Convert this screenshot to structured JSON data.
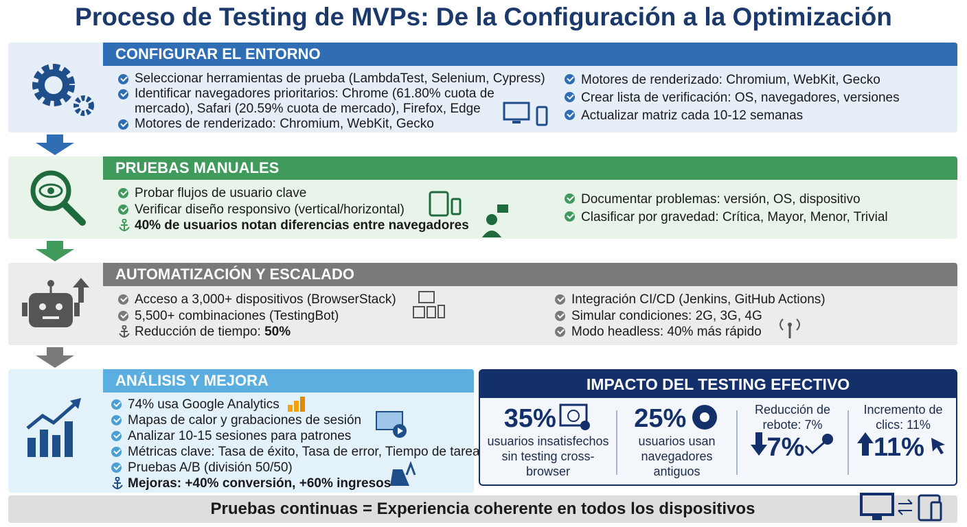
{
  "header": {
    "title": "Proceso de Testing de MVPs: De la Configuración a la Optimización"
  },
  "sections": [
    {
      "title": "CONFIGURAR EL ENTORNO",
      "left": [
        {
          "text": "Seleccionar herramientas de prueba (LambdaTest, Selenium, Cypress)"
        },
        {
          "text": "Identificar navegadores prioritarios: Chrome (61.80% cuota de mercado), Safari (20.59% cuota de mercado), Firefox, Edge"
        },
        {
          "text": "Motores de renderizado: Chromium, WebKit, Gecko"
        }
      ],
      "right": [
        {
          "text": "Motores de renderizado: Chromium, WebKit, Gecko"
        },
        {
          "text": "Crear lista de verificación: OS, navegadores, versiones"
        },
        {
          "text": "Actualizar matriz cada 10-12 semanas"
        }
      ]
    },
    {
      "title": "PRUEBAS MANUALES",
      "left": [
        {
          "text": "Probar flujos de usuario clave"
        },
        {
          "text": "Verificar diseño responsivo (vertical/horizontal)"
        },
        {
          "strong": "40% de usuarios notan diferencias entre navegadores"
        }
      ],
      "right": [
        {
          "text": "Documentar problemas: versión, OS, dispositivo"
        },
        {
          "text": "Clasificar por gravedad: Crítica, Mayor, Menor, Trivial"
        }
      ]
    },
    {
      "title": "AUTOMATIZACIÓN Y ESCALADO",
      "left": [
        {
          "text": "Acceso a 3,000+ dispositivos (BrowserStack)"
        },
        {
          "text": "5,500+ combinaciones (TestingBot)"
        },
        {
          "text": "Reducción de tiempo:",
          "strong": "50%"
        }
      ],
      "right": [
        {
          "text": "Integración CI/CD (Jenkins, GitHub Actions)"
        },
        {
          "text": "Simular condiciones: 2G, 3G, 4G"
        },
        {
          "text": "Modo headless: 40% más rápido"
        }
      ]
    },
    {
      "title": "ANÁLISIS Y MEJORA",
      "left": [
        {
          "text": "74% usa Google Analytics"
        },
        {
          "text": "Mapas de calor y grabaciones de sesión"
        },
        {
          "text": "Analizar 10-15 sesiones para patrones"
        },
        {
          "text": "Métricas clave: Tasa de éxito, Tasa de error, Tiempo de tarea"
        },
        {
          "text": "Pruebas A/B (división 50/50)"
        },
        {
          "strong": "Mejoras: +40% conversión, +60% ingresos"
        }
      ],
      "right": []
    }
  ],
  "impact": {
    "title": "IMPACTO DEL TESTING EFECTIVO",
    "stats": [
      {
        "value": "35%",
        "label": "usuarios insatisfechos sin testing cross-browser"
      },
      {
        "value": "25%",
        "label": "usuarios usan navegadores antiguos"
      },
      {
        "label": "Reducción de rebote: 7%",
        "value": "7%"
      },
      {
        "label": "Incremento de clics: 11%",
        "value": "11%"
      }
    ]
  },
  "footer": {
    "text": "Pruebas continuas = Experiencia coherente en todos los dispositivos"
  }
}
